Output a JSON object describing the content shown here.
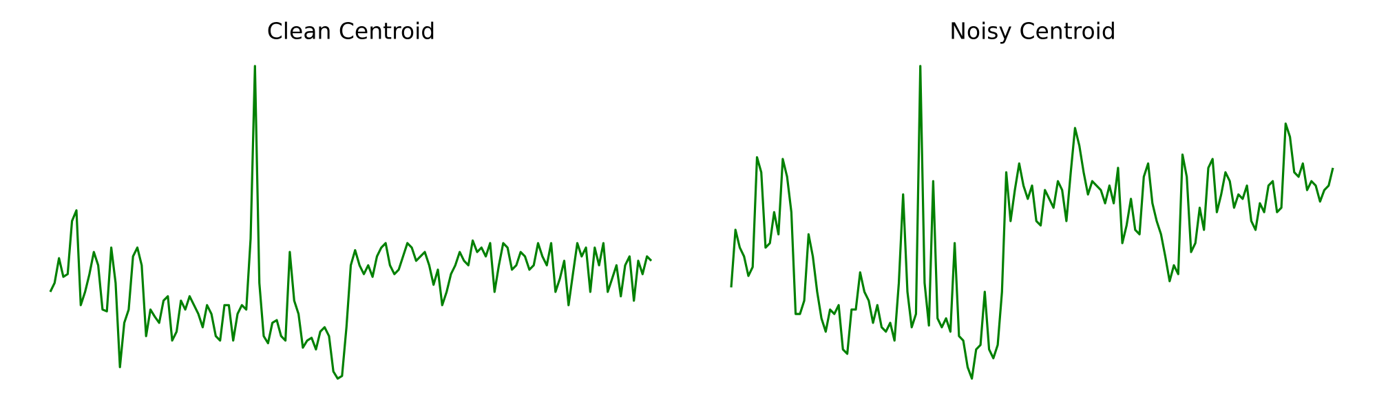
{
  "chart_data": [
    {
      "type": "line",
      "title": "Clean Centroid",
      "color": "#008000",
      "values": [
        130,
        140,
        168,
        147,
        150,
        210,
        222,
        115,
        130,
        150,
        175,
        160,
        110,
        108,
        180,
        140,
        45,
        95,
        110,
        170,
        180,
        160,
        80,
        110,
        102,
        95,
        120,
        125,
        75,
        85,
        120,
        110,
        125,
        115,
        105,
        90,
        115,
        105,
        80,
        75,
        115,
        115,
        75,
        105,
        115,
        110,
        190,
        385,
        140,
        80,
        72,
        95,
        98,
        80,
        75,
        175,
        120,
        105,
        67,
        75,
        78,
        65,
        85,
        90,
        80,
        40,
        32,
        35,
        90,
        160,
        177,
        160,
        150,
        160,
        147,
        170,
        180,
        185,
        160,
        150,
        155,
        170,
        185,
        180,
        165,
        170,
        175,
        160,
        138,
        155,
        115,
        130,
        150,
        160,
        175,
        165,
        160,
        188,
        175,
        180,
        170,
        185,
        130,
        160,
        185,
        180,
        155,
        160,
        175,
        170,
        155,
        160,
        185,
        170,
        160,
        185,
        130,
        145,
        165,
        115,
        150,
        185,
        170,
        180,
        130,
        180,
        160,
        185,
        130,
        145,
        160,
        125,
        160,
        170,
        120,
        165,
        150,
        170,
        165
      ]
    },
    {
      "type": "line",
      "title": "Noisy Centroid",
      "color": "#008000",
      "values": [
        135,
        200,
        180,
        170,
        148,
        158,
        282,
        265,
        180,
        185,
        220,
        195,
        280,
        260,
        220,
        105,
        105,
        120,
        195,
        170,
        130,
        100,
        85,
        110,
        105,
        115,
        65,
        60,
        110,
        110,
        152,
        130,
        120,
        95,
        115,
        90,
        85,
        95,
        75,
        140,
        240,
        130,
        90,
        105,
        385,
        140,
        92,
        255,
        100,
        90,
        100,
        85,
        185,
        80,
        75,
        45,
        32,
        65,
        70,
        130,
        65,
        55,
        70,
        130,
        265,
        210,
        245,
        275,
        250,
        235,
        250,
        210,
        205,
        245,
        235,
        225,
        255,
        245,
        210,
        265,
        315,
        295,
        265,
        240,
        255,
        250,
        245,
        230,
        250,
        230,
        270,
        185,
        205,
        235,
        200,
        195,
        260,
        275,
        230,
        210,
        195,
        170,
        142,
        160,
        150,
        285,
        260,
        175,
        185,
        225,
        200,
        270,
        280,
        220,
        240,
        265,
        255,
        225,
        240,
        235,
        250,
        210,
        200,
        230,
        220,
        250,
        255,
        220,
        225,
        320,
        305,
        265,
        260,
        275,
        245,
        255,
        250,
        232,
        245,
        250,
        270
      ]
    }
  ]
}
